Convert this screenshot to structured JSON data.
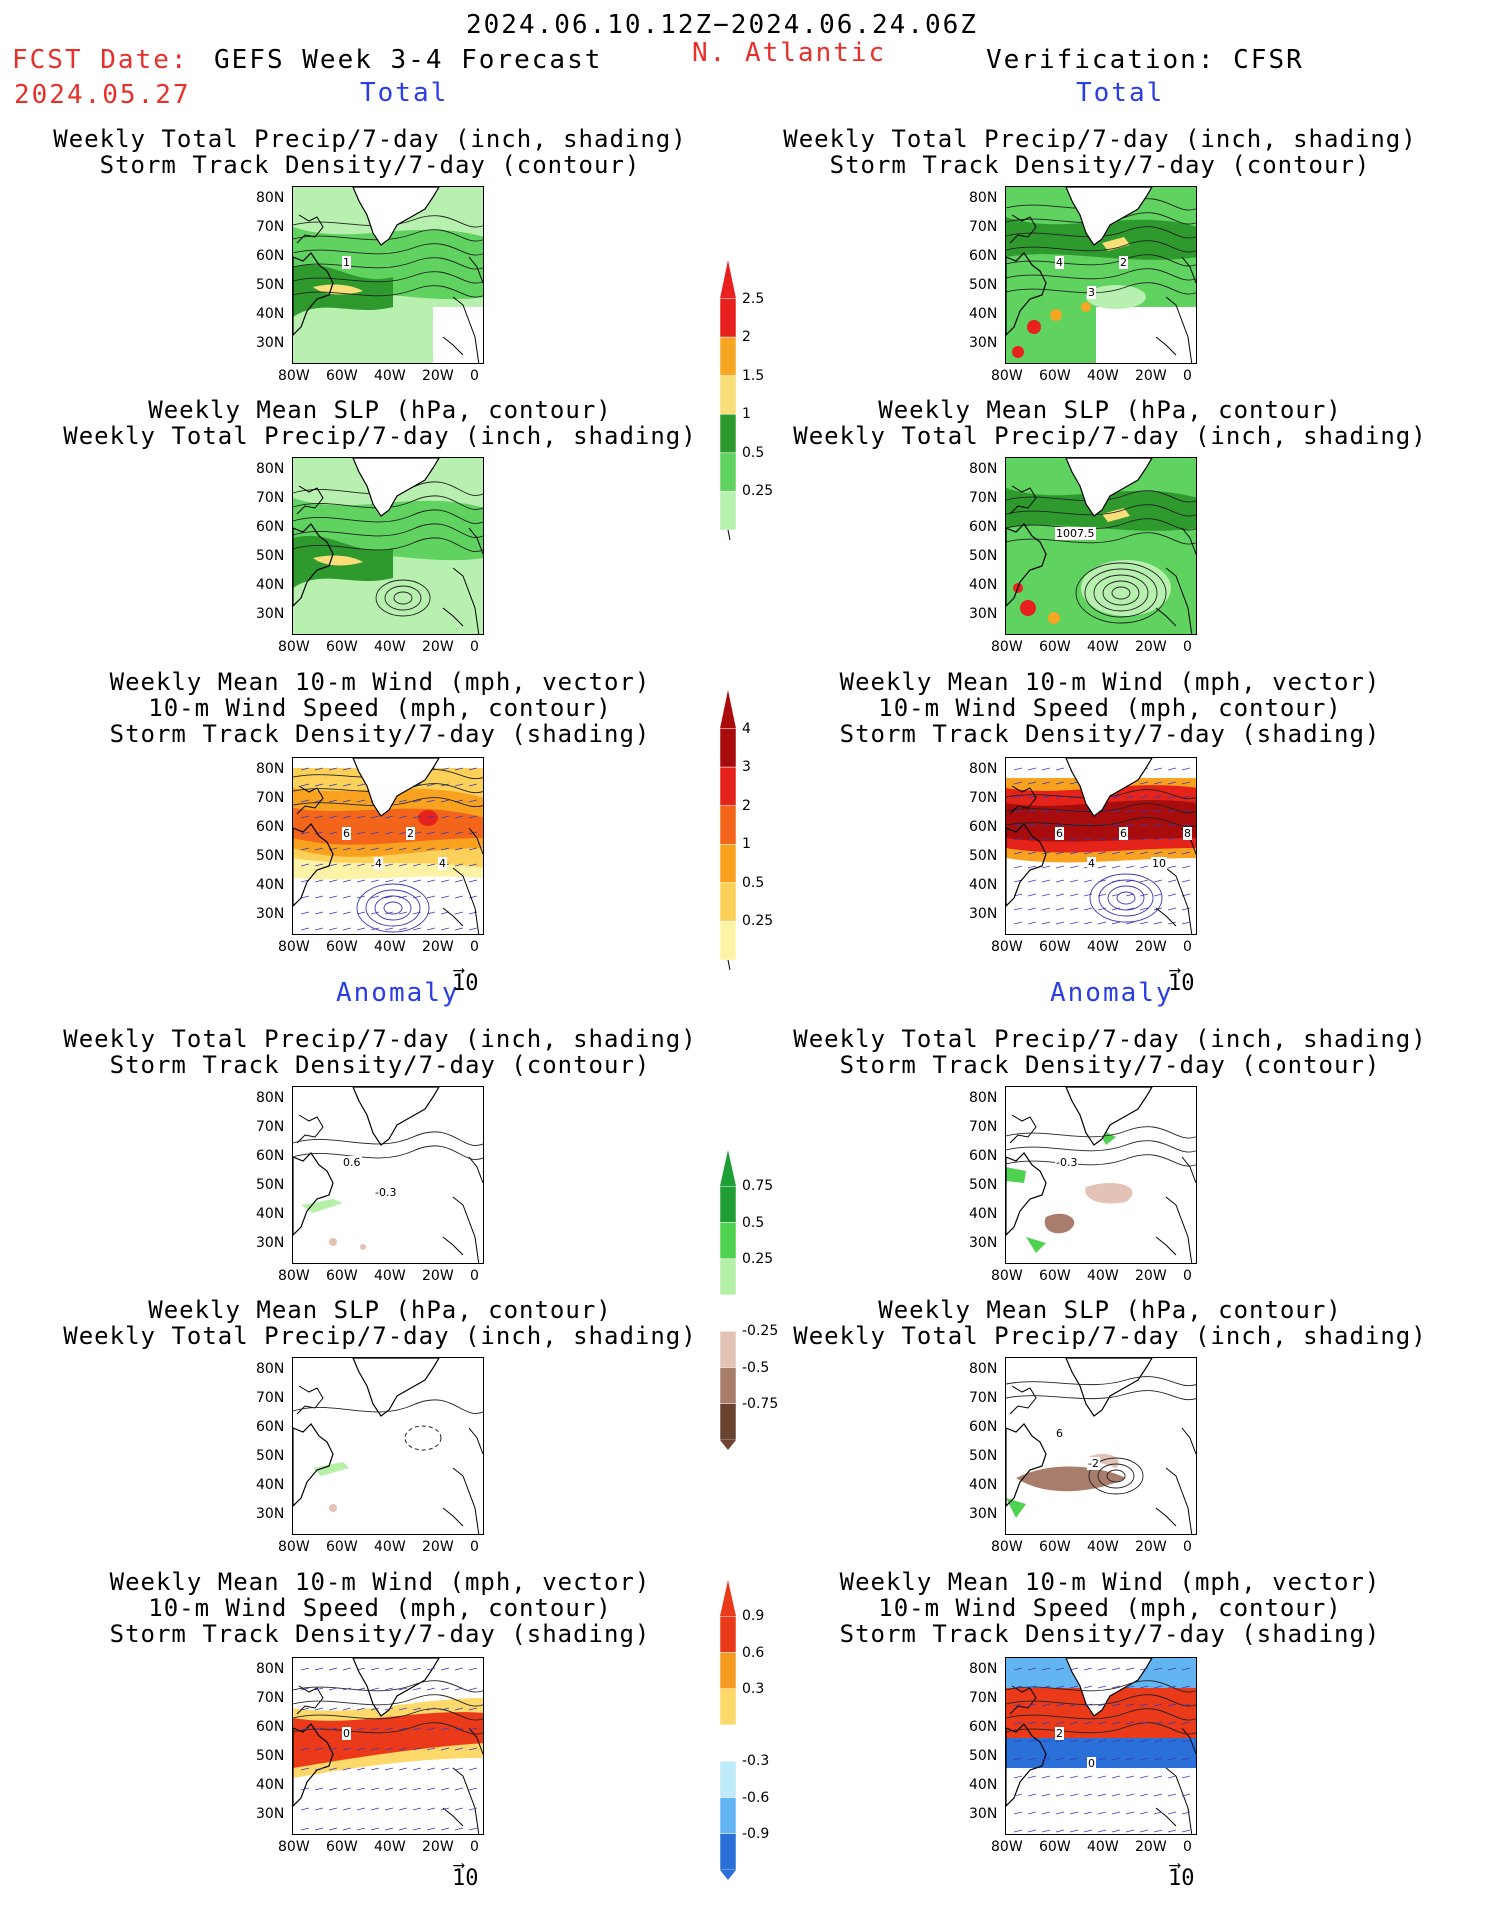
{
  "header": {
    "date_range": "2024.06.10.12Z−2024.06.24.06Z",
    "fcst_label": "FCST Date:",
    "fcst_date": "2024.05.27",
    "model_title": "GEFS Week 3-4 Forecast",
    "region": "N. Atlantic",
    "verification": "Verification: CFSR"
  },
  "sections": {
    "total": "Total",
    "anomaly": "Anomaly"
  },
  "titles": {
    "precip_storm": [
      "Weekly Total Precip/7-day (inch, shading)",
      "Storm Track Density/7-day (contour)"
    ],
    "slp_precip": [
      "Weekly Mean SLP (hPa, contour)",
      "Weekly Total Precip/7-day (inch, shading)"
    ],
    "wind_storm": [
      "Weekly Mean 10-m Wind (mph, vector)",
      "10-m Wind Speed (mph, contour)",
      "Storm Track Density/7-day (shading)"
    ]
  },
  "axes": {
    "lat": [
      "80N",
      "70N",
      "60N",
      "50N",
      "40N",
      "30N"
    ],
    "lon": [
      "80W",
      "60W",
      "40W",
      "20W",
      "0"
    ]
  },
  "vector_scale": "10",
  "colorbars": {
    "precip": {
      "labels": [
        "2.5",
        "2",
        "1.5",
        "1",
        "0.5",
        "0.25"
      ],
      "colors": [
        "#e8201e",
        "#f5a623",
        "#f9de7a",
        "#2e9a2e",
        "#5fd25f",
        "#b8f0b0"
      ]
    },
    "storm": {
      "labels": [
        "4",
        "3",
        "2",
        "1",
        "0.5",
        "0.25"
      ],
      "colors": [
        "#a80c0c",
        "#e5231b",
        "#f2651a",
        "#f8a21f",
        "#fcd15a",
        "#fdf3a6"
      ]
    },
    "precip_anom": {
      "labels": [
        "0.75",
        "0.5",
        "0.25",
        "-0.25",
        "-0.5",
        "-0.75"
      ],
      "colors": [
        "#1f9e35",
        "#4fd24f",
        "#b6f0a6",
        "#ffffff",
        "#e3c3b5",
        "#a87d6b",
        "#6a4330"
      ]
    },
    "storm_anom": {
      "labels": [
        "0.9",
        "0.6",
        "0.3",
        "-0.3",
        "-0.6",
        "-0.9"
      ],
      "colors": [
        "#ea3a1a",
        "#f79a22",
        "#fcd96a",
        "#ffffff",
        "#bfeaf8",
        "#63b5f2",
        "#2b6fd8"
      ]
    }
  },
  "contour_labels": {
    "gefs_precip_storm": "1",
    "cfsr_precip_storm": [
      "4",
      "3",
      "2"
    ],
    "cfsr_slp": "1007.5",
    "gefs_wind": [
      "6",
      "4",
      "2",
      "4"
    ],
    "cfsr_wind": [
      "6",
      "4",
      "6",
      "10",
      "8"
    ],
    "gefs_anom_precip": [
      "0.6",
      "-0.3"
    ],
    "cfsr_anom_precip": [
      "-0.3"
    ],
    "cfsr_anom_slp": [
      "6",
      "-2"
    ],
    "gefs_anom_wind": [
      "0"
    ],
    "cfsr_anom_wind": [
      "2",
      "0"
    ]
  }
}
